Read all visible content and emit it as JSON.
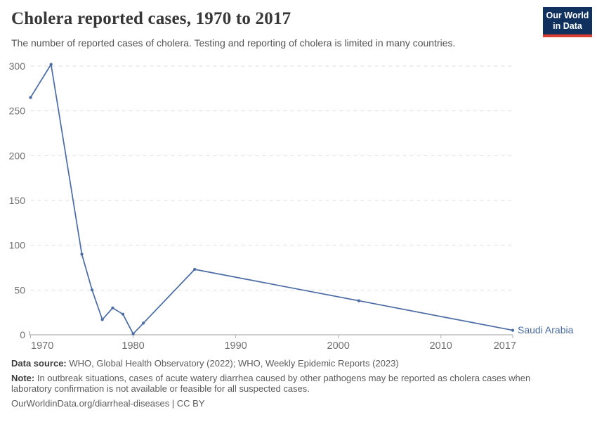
{
  "header": {
    "title": "Cholera reported cases, 1970 to 2017",
    "subtitle": "The number of reported cases of cholera. Testing and reporting of cholera is limited in many countries."
  },
  "logo": {
    "line1": "Our World",
    "line2": "in Data",
    "bg_color": "#10315e",
    "stripe_color": "#dc3e32"
  },
  "chart_data": {
    "type": "line",
    "title": "Cholera reported cases, 1970 to 2017",
    "xlabel": "",
    "ylabel": "",
    "xlim": [
      1970,
      2017
    ],
    "ylim": [
      0,
      300
    ],
    "x_ticks": [
      "1970",
      "1980",
      "1990",
      "2000",
      "2010",
      "2017"
    ],
    "x_tick_values": [
      1970,
      1980,
      1990,
      2000,
      2010,
      2017
    ],
    "y_ticks": [
      "0",
      "50",
      "100",
      "150",
      "200",
      "250",
      "300"
    ],
    "y_tick_values": [
      0,
      50,
      100,
      150,
      200,
      250,
      300
    ],
    "grid": "horizontal-dashed",
    "legend_position": "end-of-line",
    "colors": {
      "line": "#4a6ba3",
      "gridline": "#dedede",
      "axis": "#9e9e9e",
      "tick": "#b3b3b3",
      "tick_label": "#707070"
    },
    "series": [
      {
        "name": "Saudi Arabia",
        "color": "#4a6ba3",
        "points": [
          {
            "year": 1970,
            "value": 265
          },
          {
            "year": 1972,
            "value": 302
          },
          {
            "year": 1975,
            "value": 90
          },
          {
            "year": 1976,
            "value": 50
          },
          {
            "year": 1977,
            "value": 17
          },
          {
            "year": 1978,
            "value": 30
          },
          {
            "year": 1979,
            "value": 23
          },
          {
            "year": 1980,
            "value": 1
          },
          {
            "year": 1981,
            "value": 13
          },
          {
            "year": 1986,
            "value": 73
          },
          {
            "year": 2002,
            "value": 38
          },
          {
            "year": 2017,
            "value": 5
          }
        ]
      }
    ]
  },
  "footer": {
    "data_source_label": "Data source:",
    "data_source_text": " WHO, Global Health Observatory (2022); WHO, Weekly Epidemic Reports (2023)",
    "note_label": "Note:",
    "note_text": " In outbreak situations, cases of acute watery diarrhea caused by other pathogens may be reported as cholera cases when laboratory confirmation is not available or feasible for all suspected cases.",
    "citation": "OurWorldinData.org/diarrheal-diseases | CC BY"
  }
}
